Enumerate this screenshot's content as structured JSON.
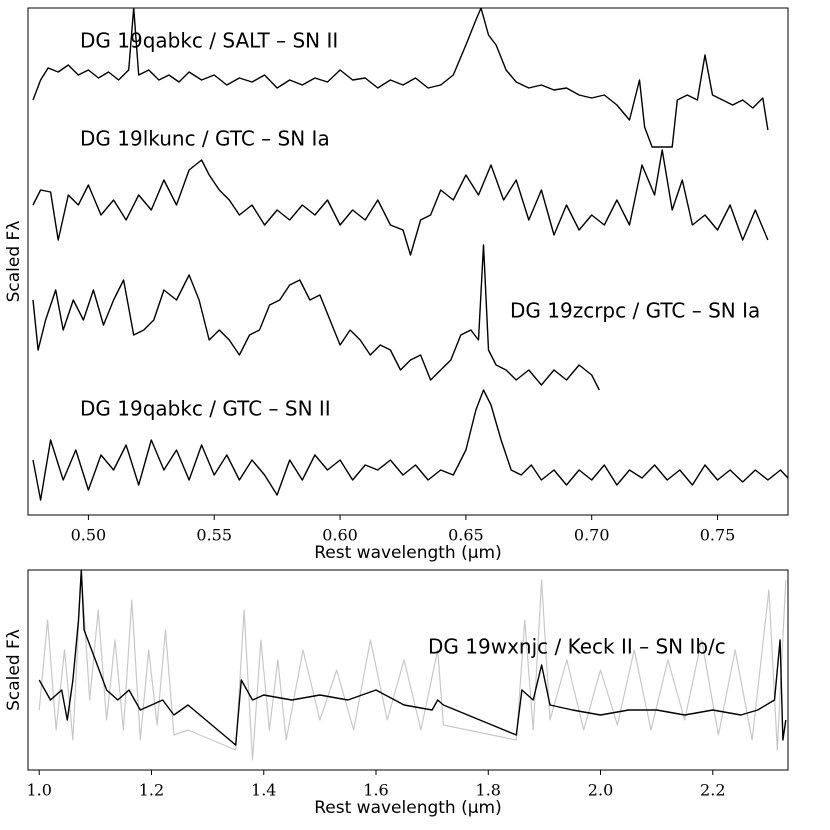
{
  "chart_data": [
    {
      "type": "line",
      "xlabel": "Rest wavelength (μm)",
      "ylabel": "Scaled Fλ",
      "xlim": [
        0.476,
        0.778
      ],
      "ylim": [
        0,
        507
      ],
      "xticks": [
        {
          "value": 0.5,
          "label": "0.50"
        },
        0.55,
        {
          "value": 0.6,
          "label": "0.60"
        },
        0.65,
        {
          "value": 0.7,
          "label": "0.70"
        },
        0.75
      ],
      "series": [
        {
          "name": "DG 19qabkc / SALT – SN II",
          "color": "#000000",
          "x": [
            0.478,
            0.481,
            0.484,
            0.488,
            0.492,
            0.496,
            0.5,
            0.504,
            0.508,
            0.512,
            0.516,
            0.518,
            0.52,
            0.524,
            0.528,
            0.532,
            0.536,
            0.54,
            0.545,
            0.55,
            0.555,
            0.56,
            0.565,
            0.57,
            0.575,
            0.58,
            0.585,
            0.59,
            0.595,
            0.6,
            0.605,
            0.61,
            0.615,
            0.62,
            0.625,
            0.63,
            0.635,
            0.64,
            0.645,
            0.65,
            0.654,
            0.656,
            0.659,
            0.662,
            0.666,
            0.67,
            0.675,
            0.68,
            0.685,
            0.69,
            0.695,
            0.7,
            0.705,
            0.71,
            0.715,
            0.719,
            0.721,
            0.724,
            0.732,
            0.734,
            0.738,
            0.742,
            0.745,
            0.748,
            0.752,
            0.756,
            0.76,
            0.764,
            0.768,
            0.77
          ],
          "values": [
            415,
            435,
            447,
            443,
            450,
            440,
            445,
            437,
            443,
            435,
            445,
            507,
            440,
            445,
            435,
            440,
            433,
            443,
            435,
            440,
            430,
            437,
            433,
            440,
            427,
            435,
            430,
            437,
            433,
            445,
            435,
            437,
            427,
            435,
            430,
            437,
            427,
            430,
            440,
            470,
            495,
            507,
            480,
            470,
            445,
            433,
            427,
            430,
            425,
            427,
            420,
            417,
            420,
            410,
            395,
            435,
            388,
            368,
            368,
            415,
            420,
            415,
            460,
            420,
            415,
            410,
            415,
            407,
            417,
            385
          ]
        },
        {
          "name": "DG 19lkunc / GTC – SN Ia",
          "color": "#000000",
          "x": [
            0.478,
            0.481,
            0.485,
            0.488,
            0.492,
            0.496,
            0.5,
            0.505,
            0.51,
            0.515,
            0.52,
            0.525,
            0.53,
            0.535,
            0.54,
            0.545,
            0.548,
            0.552,
            0.556,
            0.56,
            0.565,
            0.57,
            0.575,
            0.58,
            0.585,
            0.59,
            0.595,
            0.6,
            0.605,
            0.61,
            0.615,
            0.62,
            0.625,
            0.628,
            0.632,
            0.636,
            0.64,
            0.645,
            0.65,
            0.655,
            0.66,
            0.665,
            0.67,
            0.675,
            0.68,
            0.685,
            0.69,
            0.695,
            0.7,
            0.705,
            0.71,
            0.715,
            0.72,
            0.725,
            0.728,
            0.732,
            0.736,
            0.74,
            0.745,
            0.75,
            0.755,
            0.76,
            0.765,
            0.77
          ],
          "values": [
            310,
            325,
            323,
            275,
            320,
            310,
            330,
            300,
            315,
            295,
            320,
            305,
            335,
            310,
            345,
            355,
            340,
            325,
            315,
            300,
            310,
            290,
            305,
            295,
            310,
            300,
            315,
            290,
            305,
            295,
            315,
            290,
            285,
            260,
            295,
            300,
            325,
            315,
            340,
            320,
            350,
            315,
            335,
            295,
            325,
            280,
            310,
            285,
            300,
            290,
            315,
            290,
            350,
            320,
            365,
            305,
            335,
            290,
            300,
            285,
            310,
            275,
            305,
            275
          ]
        },
        {
          "name": "DG 19zcrpc / GTC – SN Ia",
          "color": "#000000",
          "x": [
            0.478,
            0.48,
            0.483,
            0.487,
            0.49,
            0.494,
            0.498,
            0.502,
            0.506,
            0.51,
            0.514,
            0.518,
            0.522,
            0.526,
            0.53,
            0.535,
            0.54,
            0.544,
            0.548,
            0.552,
            0.556,
            0.56,
            0.564,
            0.568,
            0.572,
            0.576,
            0.58,
            0.584,
            0.588,
            0.592,
            0.596,
            0.6,
            0.604,
            0.608,
            0.612,
            0.616,
            0.62,
            0.624,
            0.628,
            0.632,
            0.636,
            0.64,
            0.644,
            0.648,
            0.652,
            0.655,
            0.657,
            0.659,
            0.662,
            0.666,
            0.67,
            0.675,
            0.68,
            0.685,
            0.69,
            0.695,
            0.7,
            0.703
          ],
          "values": [
            215,
            165,
            195,
            225,
            185,
            215,
            195,
            225,
            190,
            215,
            235,
            180,
            185,
            195,
            225,
            215,
            240,
            215,
            175,
            185,
            175,
            160,
            180,
            185,
            210,
            215,
            230,
            235,
            215,
            220,
            195,
            170,
            185,
            175,
            160,
            170,
            165,
            145,
            155,
            160,
            135,
            145,
            155,
            180,
            185,
            175,
            270,
            165,
            150,
            145,
            135,
            145,
            130,
            145,
            135,
            150,
            140,
            125
          ]
        },
        {
          "name": "DG 19qabkc / GTC – SN II",
          "color": "#000000",
          "x": [
            0.478,
            0.481,
            0.485,
            0.49,
            0.495,
            0.5,
            0.505,
            0.51,
            0.515,
            0.52,
            0.525,
            0.53,
            0.535,
            0.54,
            0.545,
            0.55,
            0.555,
            0.56,
            0.565,
            0.57,
            0.575,
            0.58,
            0.585,
            0.59,
            0.595,
            0.6,
            0.605,
            0.61,
            0.615,
            0.62,
            0.625,
            0.63,
            0.635,
            0.64,
            0.645,
            0.65,
            0.654,
            0.657,
            0.66,
            0.664,
            0.668,
            0.672,
            0.676,
            0.68,
            0.685,
            0.69,
            0.695,
            0.7,
            0.705,
            0.71,
            0.715,
            0.72,
            0.725,
            0.73,
            0.735,
            0.74,
            0.745,
            0.75,
            0.755,
            0.76,
            0.765,
            0.77,
            0.775,
            0.778
          ],
          "values": [
            55,
            15,
            75,
            35,
            65,
            25,
            60,
            45,
            70,
            30,
            75,
            45,
            65,
            35,
            70,
            40,
            60,
            35,
            55,
            40,
            20,
            55,
            35,
            60,
            45,
            55,
            35,
            50,
            45,
            55,
            40,
            50,
            35,
            45,
            40,
            65,
            105,
            125,
            110,
            75,
            45,
            40,
            50,
            35,
            45,
            30,
            45,
            35,
            50,
            30,
            45,
            37,
            50,
            35,
            45,
            30,
            50,
            35,
            45,
            33,
            45,
            35,
            45,
            37
          ]
        }
      ]
    },
    {
      "type": "line",
      "xlabel": "Rest wavelength (μm)",
      "ylabel": "Scaled Fλ",
      "xlim": [
        0.98,
        2.334
      ],
      "ylim": [
        0,
        200
      ],
      "xticks": [
        {
          "value": 1.0,
          "label": "1.0"
        },
        1.2,
        1.4,
        1.6,
        1.8,
        {
          "value": 2.0,
          "label": "2.0"
        },
        2.2
      ],
      "series": [
        {
          "color": "#c8c8c8",
          "x": [
            1.0,
            1.015,
            1.03,
            1.045,
            1.06,
            1.075,
            1.09,
            1.105,
            1.12,
            1.135,
            1.15,
            1.165,
            1.18,
            1.195,
            1.21,
            1.225,
            1.24,
            1.265,
            1.35,
            1.365,
            1.38,
            1.395,
            1.41,
            1.425,
            1.44,
            1.47,
            1.5,
            1.53,
            1.56,
            1.59,
            1.62,
            1.65,
            1.68,
            1.71,
            1.72,
            1.85,
            1.865,
            1.88,
            1.895,
            1.91,
            1.94,
            1.97,
            2.0,
            2.03,
            2.06,
            2.09,
            2.12,
            2.15,
            2.18,
            2.21,
            2.24,
            2.27,
            2.3,
            2.315,
            2.33
          ],
          "values": [
            60,
            150,
            40,
            120,
            30,
            200,
            70,
            160,
            50,
            130,
            40,
            170,
            30,
            120,
            45,
            140,
            35,
            40,
            20,
            160,
            10,
            130,
            40,
            110,
            30,
            120,
            50,
            100,
            40,
            130,
            50,
            110,
            40,
            120,
            45,
            30,
            150,
            40,
            190,
            50,
            110,
            40,
            100,
            45,
            120,
            40,
            110,
            50,
            130,
            35,
            120,
            30,
            180,
            20,
            190
          ]
        },
        {
          "name": "DG 19wxnjc / Keck II – SN Ib/c",
          "color": "#000000",
          "x": [
            1.0,
            1.02,
            1.04,
            1.05,
            1.06,
            1.07,
            1.075,
            1.08,
            1.1,
            1.12,
            1.14,
            1.16,
            1.18,
            1.2,
            1.22,
            1.24,
            1.265,
            1.35,
            1.36,
            1.38,
            1.4,
            1.45,
            1.5,
            1.55,
            1.6,
            1.65,
            1.7,
            1.71,
            1.72,
            1.85,
            1.86,
            1.88,
            1.895,
            1.91,
            1.95,
            2.0,
            2.05,
            2.1,
            2.15,
            2.2,
            2.25,
            2.28,
            2.31,
            2.32,
            2.325,
            2.33
          ],
          "values": [
            90,
            70,
            80,
            50,
            90,
            150,
            200,
            140,
            110,
            80,
            70,
            80,
            60,
            65,
            70,
            55,
            65,
            25,
            90,
            70,
            75,
            70,
            75,
            70,
            80,
            65,
            60,
            70,
            65,
            35,
            80,
            70,
            105,
            65,
            60,
            55,
            60,
            60,
            55,
            60,
            55,
            60,
            70,
            130,
            30,
            50
          ]
        }
      ]
    }
  ]
}
